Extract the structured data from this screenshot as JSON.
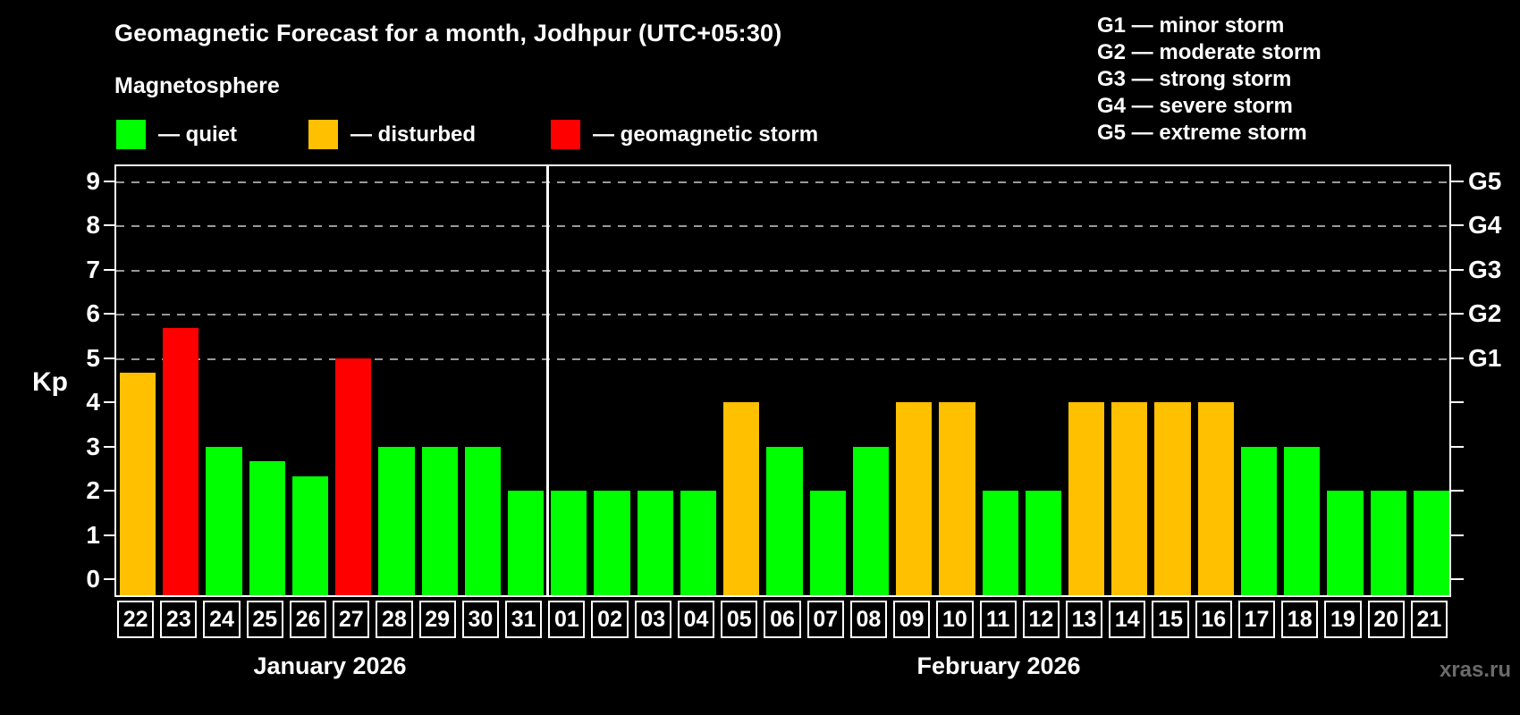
{
  "title": "Geomagnetic Forecast for a month, Jodhpur (UTC+05:30)",
  "subtitle": "Magnetosphere",
  "legend": {
    "quiet": {
      "label": "— quiet",
      "color": "#00ff00"
    },
    "disturbed": {
      "label": "— disturbed",
      "color": "#ffc000"
    },
    "storm": {
      "label": "— geomagnetic storm",
      "color": "#ff0000"
    }
  },
  "storm_scale_legend": [
    {
      "label": "G1 — minor storm"
    },
    {
      "label": "G2 — moderate storm"
    },
    {
      "label": "G3 — strong storm"
    },
    {
      "label": "G4 — severe storm"
    },
    {
      "label": "G5 — extreme storm"
    }
  ],
  "watermark": "xras.ru",
  "chart_data": {
    "type": "bar",
    "title": "Geomagnetic Forecast for a month, Jodhpur (UTC+05:30)",
    "ylabel": "Kp",
    "ylim": [
      0,
      9
    ],
    "yticks": [
      0,
      1,
      2,
      3,
      4,
      5,
      6,
      7,
      8,
      9
    ],
    "gridlines_at": [
      5,
      6,
      7,
      8,
      9
    ],
    "grid": "dashed horizontal at storm levels only",
    "right_axis_labels": [
      {
        "kp": 5,
        "label": "G1"
      },
      {
        "kp": 6,
        "label": "G2"
      },
      {
        "kp": 7,
        "label": "G3"
      },
      {
        "kp": 8,
        "label": "G4"
      },
      {
        "kp": 9,
        "label": "G5"
      }
    ],
    "months": [
      {
        "label": "January 2026",
        "days": 10
      },
      {
        "label": "February 2026",
        "days": 21
      }
    ],
    "categories": [
      "22",
      "23",
      "24",
      "25",
      "26",
      "27",
      "28",
      "29",
      "30",
      "31",
      "01",
      "02",
      "03",
      "04",
      "05",
      "06",
      "07",
      "08",
      "09",
      "10",
      "11",
      "12",
      "13",
      "14",
      "15",
      "16",
      "17",
      "18",
      "19",
      "20",
      "21"
    ],
    "values": [
      4.67,
      5.67,
      3,
      2.67,
      2.33,
      5,
      3,
      3,
      3,
      2,
      2,
      2,
      2,
      2,
      4,
      3,
      2,
      3,
      4,
      4,
      2,
      2,
      4,
      4,
      4,
      4,
      3,
      3,
      2,
      2,
      2
    ],
    "states": [
      "disturbed",
      "storm",
      "quiet",
      "quiet",
      "quiet",
      "storm",
      "quiet",
      "quiet",
      "quiet",
      "quiet",
      "quiet",
      "quiet",
      "quiet",
      "quiet",
      "disturbed",
      "quiet",
      "quiet",
      "quiet",
      "disturbed",
      "disturbed",
      "quiet",
      "quiet",
      "disturbed",
      "disturbed",
      "disturbed",
      "disturbed",
      "quiet",
      "quiet",
      "quiet",
      "quiet",
      "quiet"
    ],
    "colors": {
      "quiet": "#00ff00",
      "disturbed": "#ffc000",
      "storm": "#ff0000"
    }
  }
}
